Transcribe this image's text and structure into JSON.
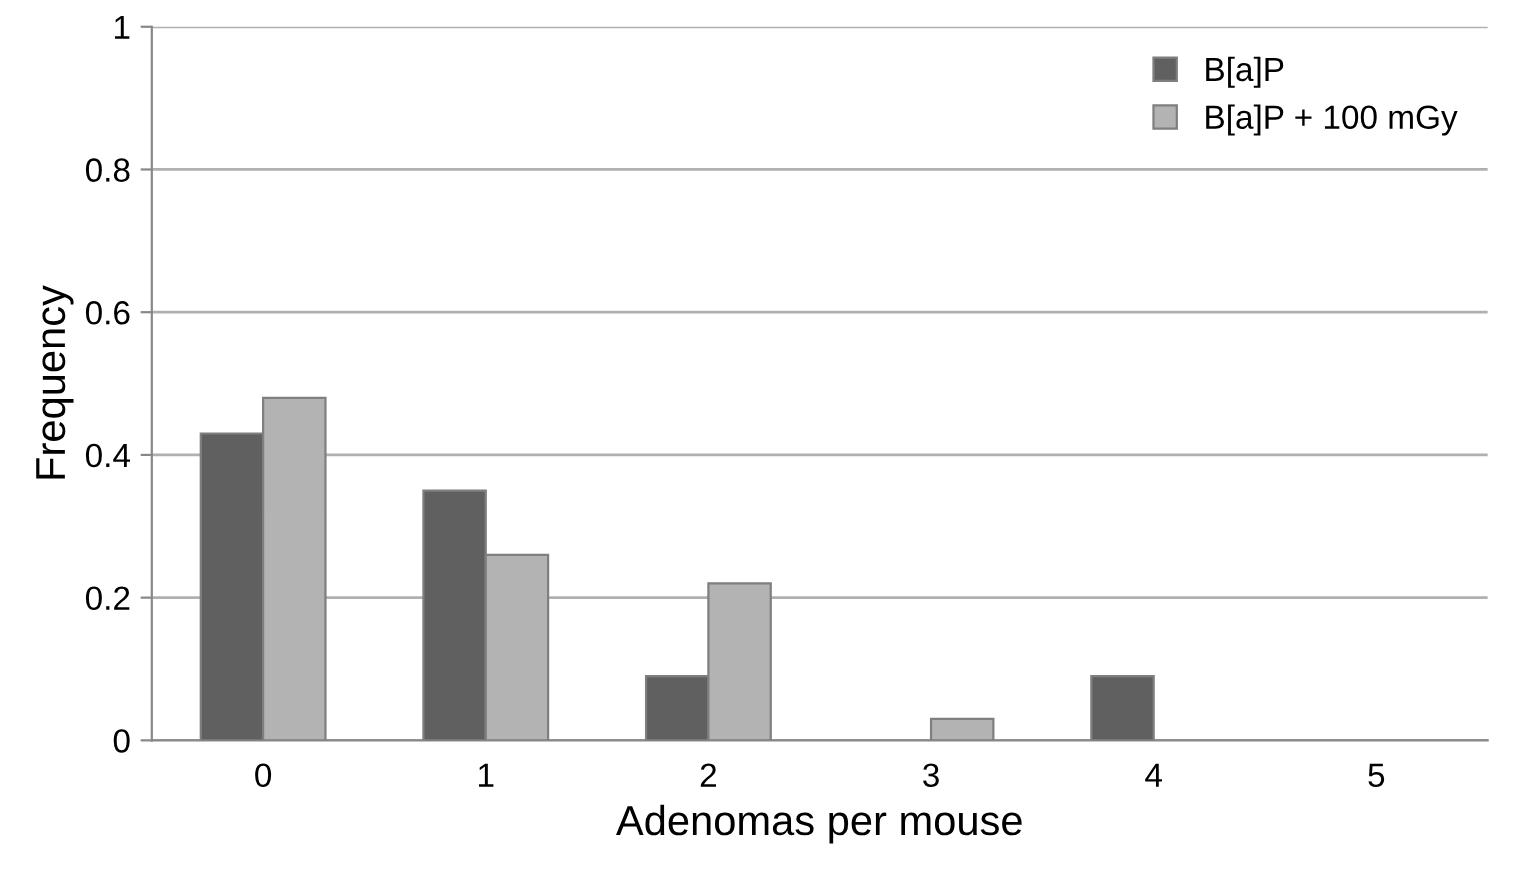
{
  "chart_data": {
    "type": "bar",
    "xlabel": "Adenomas per mouse",
    "ylabel": "Frequency",
    "categories": [
      "0",
      "1",
      "2",
      "3",
      "4",
      "5"
    ],
    "series": [
      {
        "name": "B[a]P",
        "color": "#606060",
        "values": [
          0.43,
          0.35,
          0.09,
          0,
          0.09,
          0
        ]
      },
      {
        "name": "B[a]P + 100 mGy",
        "color": "#b3b3b3",
        "values": [
          0.48,
          0.26,
          0.22,
          0.03,
          0,
          0
        ]
      }
    ],
    "ylim": [
      0,
      1
    ],
    "yticks": [
      0,
      0.2,
      0.4,
      0.6,
      0.8,
      1
    ],
    "grid": "y",
    "legend": "top right"
  }
}
